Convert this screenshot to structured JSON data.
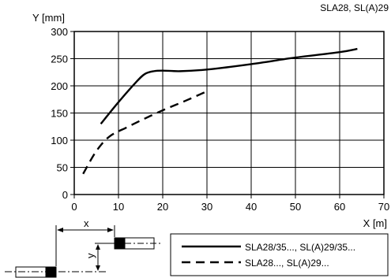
{
  "figure": {
    "caption": "SLA28, SL(A)29"
  },
  "chart_data": {
    "type": "line",
    "xlabel": "X [m]",
    "ylabel": "Y [mm]",
    "xlim": [
      0,
      70
    ],
    "ylim": [
      0,
      300
    ],
    "x_ticks": [
      0,
      10,
      20,
      30,
      40,
      50,
      60,
      70
    ],
    "y_ticks": [
      0,
      50,
      100,
      150,
      200,
      250,
      300
    ],
    "grid": true,
    "legend_position": "bottom-right",
    "series": [
      {
        "name": "SLA28/35..., SL(A)29/35...",
        "style": "solid",
        "x": [
          6,
          10,
          14,
          16,
          18,
          20,
          24,
          30,
          40,
          50,
          60,
          64
        ],
        "y": [
          130,
          170,
          207,
          222,
          227,
          228,
          227,
          230,
          240,
          252,
          262,
          268
        ]
      },
      {
        "name": "SLA28..., SL(A)29...",
        "style": "dashed",
        "x": [
          2,
          5,
          8,
          12,
          16,
          20,
          25,
          30
        ],
        "y": [
          38,
          80,
          107,
          124,
          140,
          155,
          172,
          190
        ]
      }
    ]
  },
  "schematic": {
    "x_label": "x",
    "y_label": "y"
  }
}
